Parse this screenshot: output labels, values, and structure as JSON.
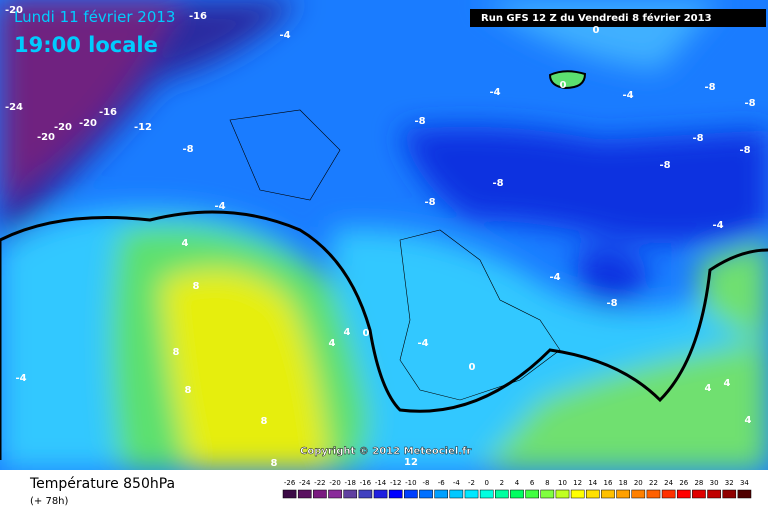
{
  "header": {
    "date": "Lundi 11 février 2013",
    "time": "19:00 locale",
    "run": "Run GFS 12 Z du Vendredi 8 février 2013"
  },
  "copyright": "Copyright © 2012 Meteociel.fr",
  "footer": {
    "title": "Température 850hPa",
    "lead": "(+ 78h)"
  },
  "contour_labels": [
    "-20",
    "-16",
    "-4",
    "0",
    "0",
    "-4",
    "-4",
    "-8",
    "-8",
    "-24",
    "-16",
    "-20",
    "-20",
    "-20",
    "-12",
    "-8",
    "-8",
    "-8",
    "-8",
    "-8",
    "-8",
    "-4",
    "-8",
    "-4",
    "4",
    "8",
    "-4",
    "-8",
    "4",
    "4",
    "0",
    "-4",
    "0",
    "8",
    "-4",
    "8",
    "4",
    "4",
    "4",
    "8",
    "12",
    "8"
  ],
  "colorbar": {
    "labels": [
      -26,
      -24,
      -22,
      -20,
      -18,
      -16,
      -14,
      -12,
      -10,
      -8,
      -6,
      -4,
      -2,
      0,
      2,
      4,
      6,
      8,
      10,
      12,
      14,
      16,
      18,
      20,
      22,
      24,
      26,
      28,
      30,
      32,
      34
    ],
    "colors": [
      "#3b0a45",
      "#5a1060",
      "#7a1a80",
      "#8a2a9a",
      "#6040a0",
      "#4040c0",
      "#2020e0",
      "#0000ff",
      "#0040ff",
      "#0070ff",
      "#00a0ff",
      "#00c8ff",
      "#00e8ff",
      "#00ffe0",
      "#00ffa0",
      "#00ff60",
      "#40ff40",
      "#80ff40",
      "#c0ff20",
      "#ffff00",
      "#ffe000",
      "#ffc000",
      "#ffa000",
      "#ff8000",
      "#ff6000",
      "#ff3000",
      "#ff0000",
      "#e00000",
      "#c00000",
      "#900000",
      "#500000"
    ]
  }
}
